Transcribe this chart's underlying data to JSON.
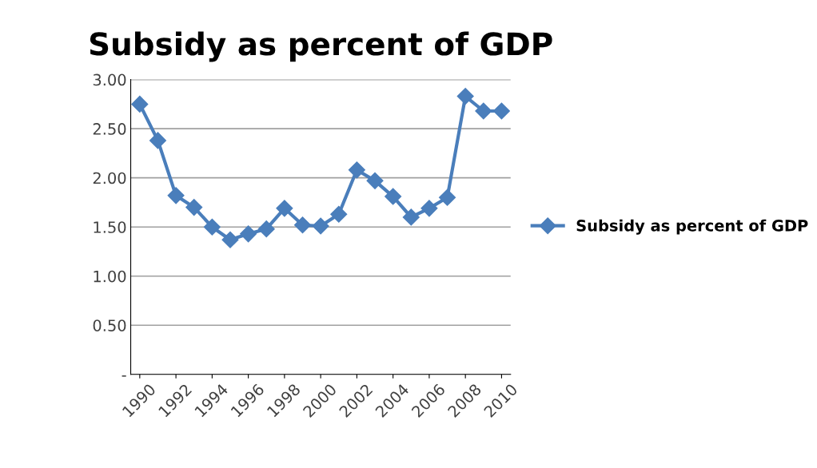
{
  "chart_data": {
    "type": "line",
    "title": "Subsidy as percent of GDP",
    "categories": [
      "1990",
      null,
      "1992",
      null,
      "1994",
      null,
      "1996",
      null,
      "1998",
      null,
      "2000",
      null,
      "2002",
      null,
      "2004",
      null,
      "2006",
      null,
      "2008",
      null,
      "2010"
    ],
    "series": [
      {
        "name": "Subsidy as percent of GDP",
        "color": "#4a7ebb",
        "values": [
          2.75,
          2.38,
          1.82,
          1.7,
          1.5,
          1.37,
          1.43,
          1.48,
          1.69,
          1.52,
          1.51,
          1.63,
          2.08,
          1.97,
          1.81,
          1.6,
          1.69,
          1.8,
          2.83,
          2.68,
          2.68
        ]
      }
    ],
    "ylim": [
      0,
      3
    ],
    "yticks": [
      {
        "value": 0,
        "label": "-"
      },
      {
        "value": 0.5,
        "label": "0.50"
      },
      {
        "value": 1,
        "label": "1.00"
      },
      {
        "value": 1.5,
        "label": "1.50"
      },
      {
        "value": 2,
        "label": "2.00"
      },
      {
        "value": 2.5,
        "label": "2.50"
      },
      {
        "value": 3,
        "label": "3.00"
      }
    ],
    "grid": "y",
    "legend": "right",
    "marker": "diamond",
    "line_style": "solid"
  }
}
